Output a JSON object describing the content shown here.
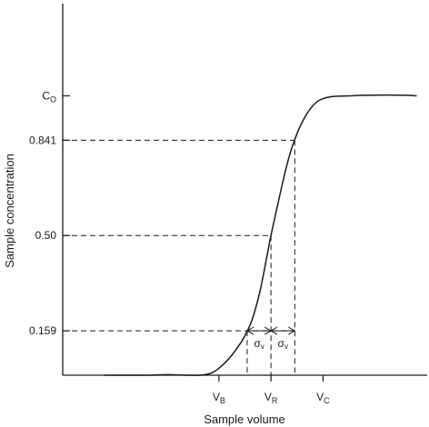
{
  "chart_data": {
    "type": "line",
    "title": "",
    "xlabel": "Sample volume",
    "ylabel": "Sample concentration",
    "y_ticks": [
      {
        "label": "C",
        "sub": "O",
        "value": 1.0
      },
      {
        "label": "0.841",
        "value": 0.841
      },
      {
        "label": "0.50",
        "value": 0.5
      },
      {
        "label": "0.159",
        "value": 0.159
      }
    ],
    "x_ticks": [
      {
        "label": "V",
        "sub": "B",
        "value": 0.75
      },
      {
        "label": "V",
        "sub": "R",
        "value": 1.0
      },
      {
        "label": "V",
        "sub": "C",
        "value": 1.25
      }
    ],
    "sigma_label": "σ",
    "sigma_sub": "v",
    "series": [
      {
        "x": [
          0.2,
          0.3,
          0.4,
          0.5,
          0.6,
          0.65,
          0.69,
          0.72,
          0.75,
          0.78,
          0.81,
          0.84,
          0.87,
          0.91,
          0.95,
          1.0,
          1.05,
          1.09,
          1.13,
          1.16,
          1.19,
          1.22,
          1.25,
          1.29,
          1.33,
          1.38,
          1.45,
          1.55,
          1.65,
          1.7
        ],
        "y": [
          0.0,
          0.0,
          0.0,
          0.002,
          0.0,
          0.0,
          0.003,
          0.01,
          0.025,
          0.045,
          0.07,
          0.1,
          0.135,
          0.2,
          0.31,
          0.5,
          0.67,
          0.79,
          0.874,
          0.92,
          0.955,
          0.978,
          0.99,
          0.997,
          0.999,
          1.0,
          1.002,
          1.003,
          1.002,
          1.0
        ]
      }
    ],
    "xlim": [
      0,
      1.75
    ],
    "ylim": [
      0,
      1.33
    ],
    "grid": false,
    "legend": "none"
  }
}
